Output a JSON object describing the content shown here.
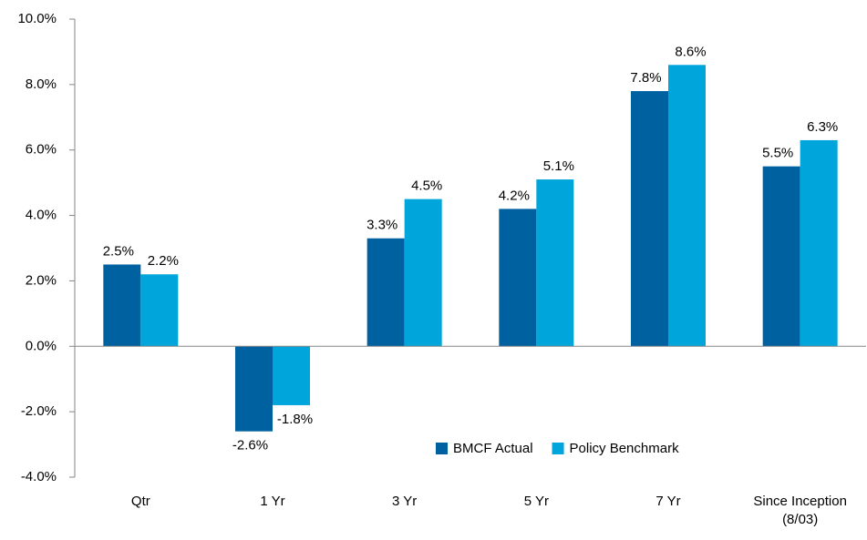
{
  "chart_data": {
    "type": "bar",
    "categories": [
      "Qtr",
      "1 Yr",
      "3 Yr",
      "5 Yr",
      "7 Yr",
      "Since Inception (8/03)"
    ],
    "series": [
      {
        "name": "BMCF Actual",
        "color": "#0061a1",
        "values": [
          2.5,
          -2.6,
          3.3,
          4.2,
          7.8,
          5.5
        ],
        "value_labels": [
          "2.5%",
          "-2.6%",
          "3.3%",
          "4.2%",
          "7.8%",
          "5.5%"
        ]
      },
      {
        "name": "Policy Benchmark",
        "color": "#00a5db",
        "values": [
          2.2,
          -1.8,
          4.5,
          5.1,
          8.6,
          6.3
        ],
        "value_labels": [
          "2.2%",
          "-1.8%",
          "4.5%",
          "5.1%",
          "8.6%",
          "6.3%"
        ]
      }
    ],
    "ylim": [
      -4,
      10
    ],
    "yticks": [
      {
        "value": -4,
        "label": "-4.0%"
      },
      {
        "value": -2,
        "label": "-2.0%"
      },
      {
        "value": 0,
        "label": "0.0%"
      },
      {
        "value": 2,
        "label": "2.0%"
      },
      {
        "value": 4,
        "label": "4.0%"
      },
      {
        "value": 6,
        "label": "6.0%"
      },
      {
        "value": 8,
        "label": "8.0%"
      },
      {
        "value": 10,
        "label": "10.0%"
      }
    ],
    "grid": false,
    "legend": "lower right"
  }
}
